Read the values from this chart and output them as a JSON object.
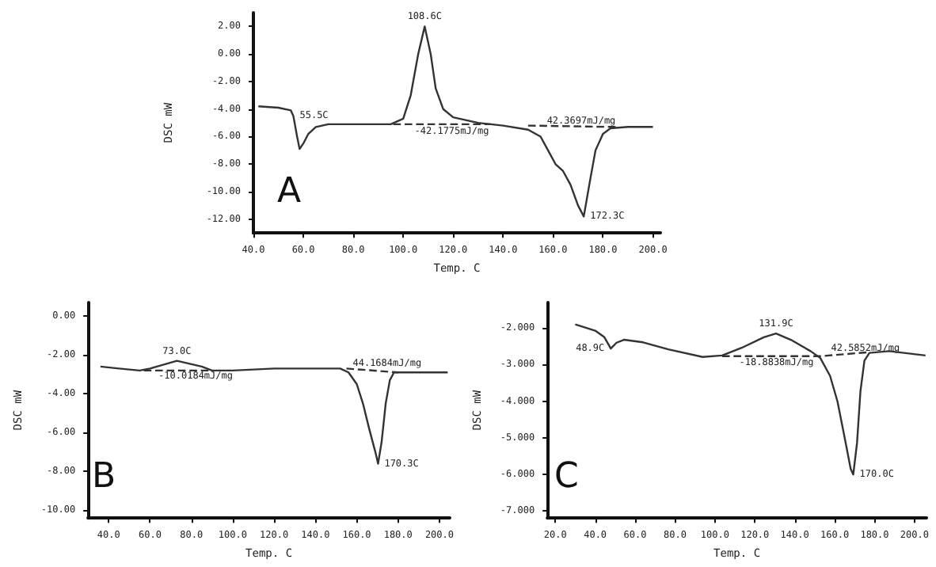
{
  "chart_data": [
    {
      "type": "line",
      "xlabel": "Temp. C",
      "ylabel": "DSC mW",
      "marker": "none",
      "xlim": [
        40,
        203
      ],
      "ylim": [
        -13,
        3
      ],
      "xticks": [
        {
          "value": 40,
          "label": "40.0"
        },
        {
          "value": 60,
          "label": "60.0"
        },
        {
          "value": 80,
          "label": "80.0"
        },
        {
          "value": 100,
          "label": "100.0"
        },
        {
          "value": 120,
          "label": "120.0"
        },
        {
          "value": 140,
          "label": "140.0"
        },
        {
          "value": 160,
          "label": "160.0"
        },
        {
          "value": 180,
          "label": "180.0"
        },
        {
          "value": 200,
          "label": "200.0"
        }
      ],
      "yticks": [
        {
          "value": 2,
          "label": "2.00"
        },
        {
          "value": 0,
          "label": "0.00"
        },
        {
          "value": -2,
          "label": "-2.00"
        },
        {
          "value": -4,
          "label": "-4.00"
        },
        {
          "value": -6,
          "label": "-6.00"
        },
        {
          "value": -8,
          "label": "-8.00"
        },
        {
          "value": -10,
          "label": "-10.00"
        },
        {
          "value": -12,
          "label": "-12.00"
        }
      ],
      "series": [
        {
          "color": "#333333",
          "line_style": "solid",
          "x": [
            42,
            50,
            55,
            56,
            57.5,
            58.5,
            60,
            62,
            65,
            70,
            80,
            95,
            100,
            103,
            106,
            108.6,
            111,
            113,
            116,
            120,
            130,
            140,
            150,
            155,
            158,
            161,
            164,
            167,
            170,
            172.3,
            175,
            177,
            180,
            183,
            190,
            200
          ],
          "values": [
            -3.8,
            -3.9,
            -4.1,
            -4.5,
            -6.0,
            -6.9,
            -6.5,
            -5.8,
            -5.3,
            -5.1,
            -5.1,
            -5.1,
            -4.7,
            -3.0,
            0.0,
            2.0,
            0.0,
            -2.5,
            -4.0,
            -4.6,
            -5.0,
            -5.2,
            -5.5,
            -6.0,
            -7.0,
            -8.0,
            -8.5,
            -9.5,
            -11.0,
            -11.8,
            -9.0,
            -7.0,
            -5.8,
            -5.4,
            -5.3,
            -5.3
          ]
        },
        {
          "color": "#333333",
          "line_style": "dashed",
          "x": [
            96,
            135
          ],
          "values": [
            -5.1,
            -5.1
          ]
        },
        {
          "color": "#333333",
          "line_style": "dashed",
          "x": [
            150,
            185
          ],
          "values": [
            -5.2,
            -5.3
          ]
        }
      ],
      "annotations": [
        "A",
        {
          "text": "55.5C",
          "x": 56,
          "y": -4.5
        },
        {
          "text": "108.6C",
          "x": 108.6,
          "y": 2.0
        },
        {
          "text": "172.3C",
          "x": 172.3,
          "y": -11.8
        },
        {
          "text": "-42.1775mJ/mg",
          "x": 102,
          "y": -5.6
        },
        {
          "text": "42.3697mJ/mg",
          "x": 155,
          "y": -4.9
        }
      ]
    },
    {
      "type": "line",
      "xlabel": "Temp. C",
      "ylabel": "DSC mW",
      "marker": "none",
      "xlim": [
        30,
        205
      ],
      "ylim": [
        -10.4,
        0.7
      ],
      "xticks": [
        {
          "value": 40,
          "label": "40.0"
        },
        {
          "value": 60,
          "label": "60.0"
        },
        {
          "value": 80,
          "label": "80.0"
        },
        {
          "value": 100,
          "label": "100.0"
        },
        {
          "value": 120,
          "label": "120.0"
        },
        {
          "value": 140,
          "label": "140.0"
        },
        {
          "value": 160,
          "label": "160.0"
        },
        {
          "value": 180,
          "label": "180.0"
        },
        {
          "value": 200,
          "label": "200.0"
        }
      ],
      "yticks": [
        {
          "value": 0,
          "label": "0.00"
        },
        {
          "value": -2,
          "label": "-2.00"
        },
        {
          "value": -4,
          "label": "-4.00"
        },
        {
          "value": -6,
          "label": "-6.00"
        },
        {
          "value": -8,
          "label": "-8.00"
        },
        {
          "value": -10,
          "label": "-10.00"
        }
      ],
      "series": [
        {
          "color": "#333333",
          "line_style": "solid",
          "x": [
            36,
            45,
            55,
            60,
            73,
            85,
            90,
            100,
            120,
            140,
            152,
            156,
            160,
            163,
            166,
            169,
            170.3,
            172,
            174,
            176,
            178,
            180,
            190,
            204
          ],
          "values": [
            -2.6,
            -2.7,
            -2.8,
            -2.7,
            -2.3,
            -2.6,
            -2.8,
            -2.8,
            -2.7,
            -2.7,
            -2.7,
            -2.9,
            -3.5,
            -4.5,
            -5.8,
            -7.0,
            -7.6,
            -6.5,
            -4.5,
            -3.3,
            -2.9,
            -2.9,
            -2.9,
            -2.9
          ]
        },
        {
          "color": "#333333",
          "line_style": "dashed",
          "x": [
            57,
            90
          ],
          "values": [
            -2.8,
            -2.8
          ]
        },
        {
          "color": "#333333",
          "line_style": "dashed",
          "x": [
            155,
            180
          ],
          "values": [
            -2.7,
            -2.9
          ]
        }
      ],
      "annotations": [
        "B",
        {
          "text": "73.0C",
          "x": 73,
          "y": -2.3
        },
        {
          "text": "-10.0184mJ/mg",
          "x": 61,
          "y": -3.1
        },
        {
          "text": "44.1684mJ/mg",
          "x": 155,
          "y": -2.45
        },
        {
          "text": "170.3C",
          "x": 170.3,
          "y": -7.6
        }
      ]
    },
    {
      "type": "line",
      "xlabel": "Temp. C",
      "ylabel": "DSC mW",
      "marker": "none",
      "xlim": [
        16,
        206
      ],
      "ylim": [
        -7.2,
        -1.3
      ],
      "xticks": [
        {
          "value": 20,
          "label": "20.0"
        },
        {
          "value": 40,
          "label": "40.0"
        },
        {
          "value": 60,
          "label": "60.0"
        },
        {
          "value": 80,
          "label": "80.0"
        },
        {
          "value": 100,
          "label": "100.0"
        },
        {
          "value": 120,
          "label": "120.0"
        },
        {
          "value": 140,
          "label": "140.0"
        },
        {
          "value": 160,
          "label": "160.0"
        },
        {
          "value": 180,
          "label": "180.0"
        },
        {
          "value": 200,
          "label": "200.0"
        }
      ],
      "yticks": [
        {
          "value": -2,
          "label": "-2.000"
        },
        {
          "value": -3,
          "label": "-3.000"
        },
        {
          "value": -4,
          "label": "-4.000"
        },
        {
          "value": -5,
          "label": "-5.000"
        },
        {
          "value": -6,
          "label": "-6.000"
        },
        {
          "value": -7,
          "label": "-7.000"
        }
      ],
      "series": [
        {
          "color": "#333333",
          "line_style": "solid",
          "x": [
            30,
            40,
            44.6,
            47.8,
            50.7,
            54.4,
            64,
            76.6,
            93.8,
            103.6,
            113.4,
            124.5,
            130.6,
            138,
            147.9,
            152.8,
            157.7,
            161.4,
            165,
            168,
            169.3,
            171.2,
            172.9,
            174.9,
            177.4,
            187.2,
            205.5
          ],
          "values": [
            -1.9,
            -2.07,
            -2.25,
            -2.56,
            -2.4,
            -2.32,
            -2.39,
            -2.58,
            -2.79,
            -2.75,
            -2.54,
            -2.25,
            -2.15,
            -2.32,
            -2.63,
            -2.82,
            -3.31,
            -4.01,
            -5.0,
            -5.85,
            -6.01,
            -5.14,
            -3.73,
            -2.89,
            -2.68,
            -2.63,
            -2.75
          ]
        },
        {
          "color": "#333333",
          "line_style": "dashed",
          "x": [
            103.6,
            152.8,
            177
          ],
          "values": [
            -2.77,
            -2.77,
            -2.66
          ]
        }
      ],
      "annotations": [
        "C",
        {
          "text": "48.9C",
          "x": 47.8,
          "y": -2.56
        },
        {
          "text": "131.9C",
          "x": 130.6,
          "y": -2.15
        },
        {
          "text": "-18.8838mJ/mg",
          "x": 109,
          "y": -2.95
        },
        {
          "text": "42.5852mJ/mg",
          "x": 155,
          "y": -2.55
        },
        {
          "text": "170.0C",
          "x": 169.3,
          "y": -6.01
        }
      ]
    }
  ]
}
